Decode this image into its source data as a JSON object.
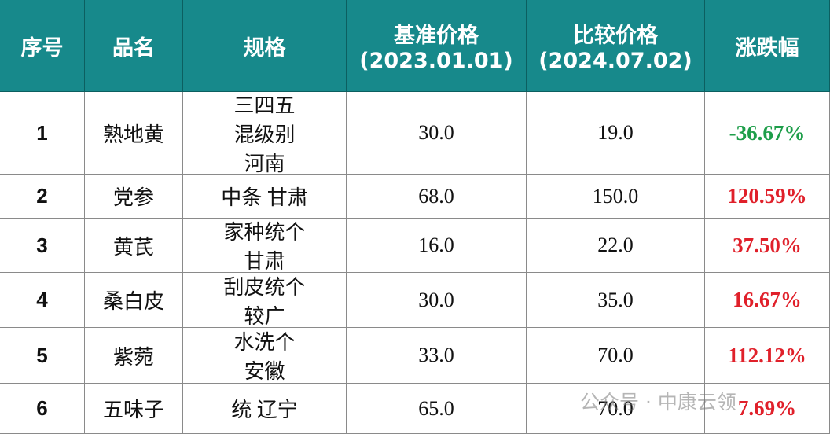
{
  "table": {
    "header": [
      "序号",
      "品名",
      "规格",
      [
        "基准价格",
        "(2023.01.01)"
      ],
      [
        "比较价格",
        "(2024.07.02)"
      ],
      "涨跌幅"
    ],
    "rows": [
      {
        "no": "1",
        "name": "熟地黄",
        "spec": [
          "三四五",
          "混级别",
          "河南"
        ],
        "base": "30.0",
        "compare": "19.0",
        "change": "-36.67%",
        "color": "#1e9e4a"
      },
      {
        "no": "2",
        "name": "党参",
        "spec": [
          "中条 甘肃"
        ],
        "base": "68.0",
        "compare": "150.0",
        "change": "120.59%",
        "color": "#e0202a"
      },
      {
        "no": "3",
        "name": "黄芪",
        "spec": [
          "家种统个",
          "甘肃"
        ],
        "base": "16.0",
        "compare": "22.0",
        "change": "37.50%",
        "color": "#e0202a"
      },
      {
        "no": "4",
        "name": "桑白皮",
        "spec": [
          "刮皮统个",
          "较广"
        ],
        "base": "30.0",
        "compare": "35.0",
        "change": "16.67%",
        "color": "#e0202a"
      },
      {
        "no": "5",
        "name": "紫菀",
        "spec": [
          "水洗个",
          "安徽"
        ],
        "base": "33.0",
        "compare": "70.0",
        "change": "112.12%",
        "color": "#e0202a"
      },
      {
        "no": "6",
        "name": "五味子",
        "spec": [
          "统 辽宁"
        ],
        "base": "65.0",
        "compare": "70.0",
        "change": "7.69%",
        "color": "#e0202a"
      }
    ]
  },
  "watermark": "公众号 · 中康云领"
}
